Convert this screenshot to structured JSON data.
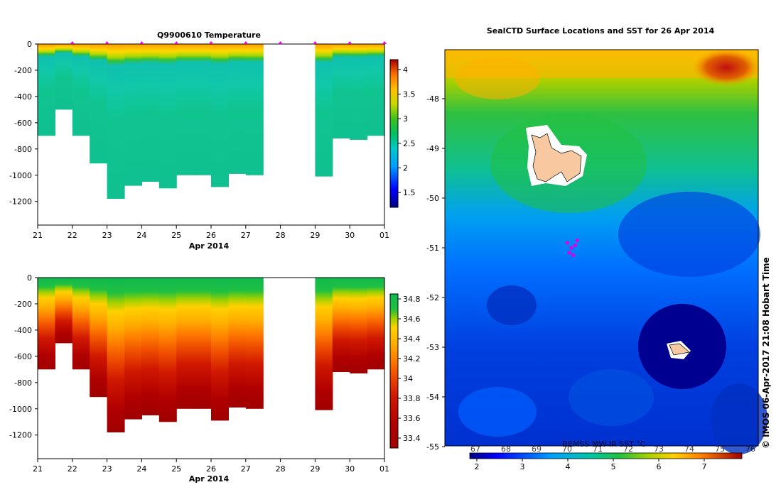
{
  "chart_data": [
    {
      "type": "heatmap",
      "title": "Q9900610  Temperature",
      "xlabel": "Apr 2014",
      "x_ticks": [
        "21",
        "22",
        "23",
        "24",
        "25",
        "26",
        "27",
        "28",
        "29",
        "30",
        "01"
      ],
      "y_ticks": [
        "0",
        "-200",
        "-400",
        "-600",
        "-800",
        "-1000",
        "-1200"
      ],
      "ylim": [
        -1380,
        0
      ],
      "colorbar_ticks": [
        "4",
        "3.5",
        "3",
        "2.5",
        "2",
        "1.5"
      ],
      "colorbar_range": [
        1.2,
        4.2
      ],
      "profile_days": [
        21.0,
        21.5,
        22.0,
        22.5,
        23.0,
        23.5,
        24.0,
        24.5,
        25.0,
        25.5,
        26.0,
        26.5,
        27.0,
        29.0,
        29.5,
        30.0,
        30.5
      ],
      "profile_max_depth": [
        700,
        500,
        700,
        910,
        1180,
        1080,
        1050,
        1100,
        1000,
        1000,
        1090,
        990,
        1000,
        1010,
        720,
        730,
        700
      ],
      "gap_days": [
        27.6,
        28.2
      ],
      "colors": [
        "#000080",
        "#0000ff",
        "#00a0ff",
        "#00c8c8",
        "#00c060",
        "#40c020",
        "#a0d000",
        "#ffd000",
        "#ff9000",
        "#e03000",
        "#a00000"
      ]
    },
    {
      "type": "heatmap",
      "title": "",
      "xlabel": "Apr 2014",
      "x_ticks": [
        "21",
        "22",
        "23",
        "24",
        "25",
        "26",
        "27",
        "28",
        "29",
        "30",
        "01"
      ],
      "y_ticks": [
        "0",
        "-200",
        "-400",
        "-600",
        "-800",
        "-1000",
        "-1200"
      ],
      "ylim": [
        -1380,
        0
      ],
      "colorbar_ticks": [
        "34.8",
        "34.6",
        "34.4",
        "34.2",
        "34",
        "33.8",
        "33.6",
        "33.4"
      ],
      "colorbar_range": [
        33.3,
        34.85
      ]
    },
    {
      "type": "heatmap",
      "title": "SealCTD Surface Locations and SST for 26 Apr 2014",
      "y_ticks": [
        "-48",
        "-49",
        "-50",
        "-51",
        "-52",
        "-53",
        "-54",
        "-55"
      ],
      "colorbar_label": "REMSS MW-IR SST °C",
      "colorbar_top_ticks": [
        "67",
        "68",
        "69",
        "70",
        "71",
        "72",
        "73",
        "74",
        "75",
        "76"
      ],
      "colorbar_bottom_ticks": [
        "2",
        "3",
        "4",
        "5",
        "6",
        "7"
      ],
      "track_points": [
        [
          -50.9,
          71.2
        ],
        [
          -51.0,
          71.3
        ],
        [
          -50.95,
          71.4
        ],
        [
          -51.1,
          71.25
        ],
        [
          -51.15,
          71.35
        ],
        [
          -50.85,
          71.45
        ]
      ]
    }
  ],
  "stamp": "© IMOS 06-Apr-2017 21:08 Hobart Time"
}
